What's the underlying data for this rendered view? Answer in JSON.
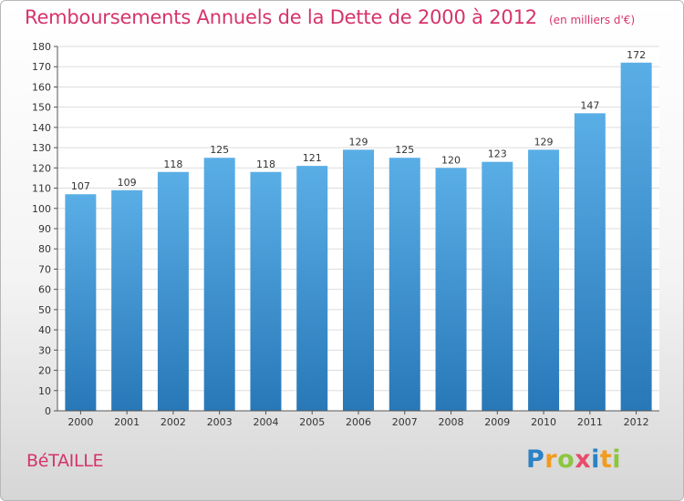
{
  "chart_data": {
    "type": "bar",
    "title": "Remboursements Annuels de la Dette de 2000 à 2012",
    "subtitle": "(en milliers d'€)",
    "categories": [
      "2000",
      "2001",
      "2002",
      "2003",
      "2004",
      "2005",
      "2006",
      "2007",
      "2008",
      "2009",
      "2010",
      "2011",
      "2012"
    ],
    "values": [
      107,
      109,
      118,
      125,
      118,
      121,
      129,
      125,
      120,
      123,
      129,
      147,
      172
    ],
    "ylim": [
      0,
      180
    ],
    "ytick_step": 10,
    "grid": true,
    "bar_color_top": "#5aaee6",
    "bar_color_bottom": "#2878b8"
  },
  "footer": {
    "city": "BéTAILLE",
    "logo_letters": [
      {
        "ch": "P",
        "color": "#2b82c4"
      },
      {
        "ch": "r",
        "color": "#f29b1d"
      },
      {
        "ch": "o",
        "color": "#8cc63f"
      },
      {
        "ch": "x",
        "color": "#e84b6b"
      },
      {
        "ch": "i",
        "color": "#2b82c4"
      },
      {
        "ch": "t",
        "color": "#f29b1d"
      },
      {
        "ch": "i",
        "color": "#8cc63f"
      }
    ]
  }
}
